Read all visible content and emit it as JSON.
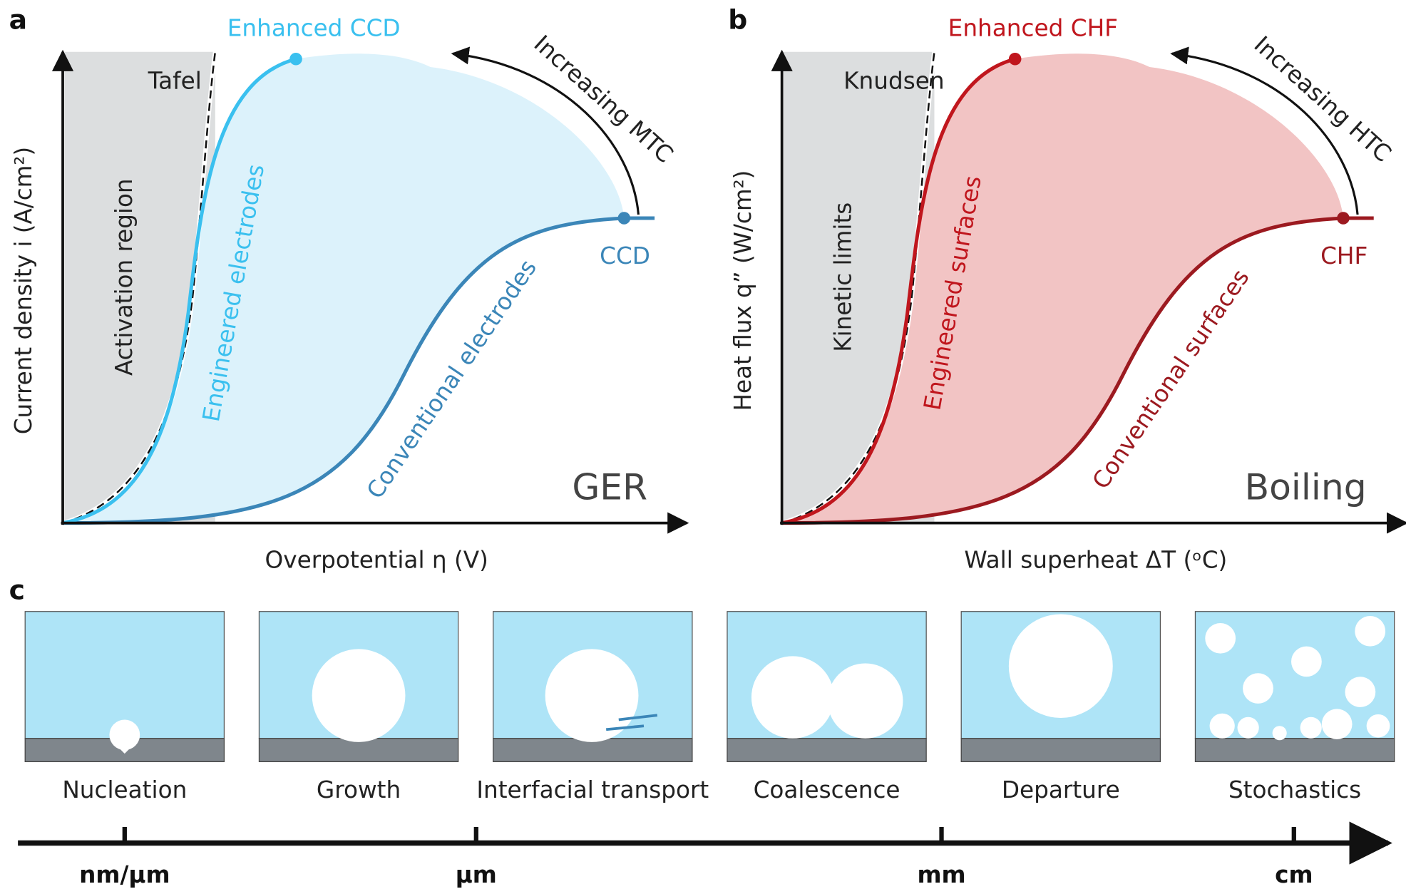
{
  "panels": [
    {
      "label": "a",
      "x_axis": "Overpotential η (V)",
      "y_axis": "Current density i (A/cm²)",
      "region": "Activation region",
      "limit": "Tafel",
      "enhanced": "Enhanced CCD",
      "engineered": "Engineered electrodes",
      "conventional": "Conventional electrodes",
      "critical": "CCD",
      "trend": "Increasing MTC",
      "process": "GER"
    },
    {
      "label": "b",
      "x_axis": "Wall superheat ΔT (ᵒC)",
      "y_axis": "Heat flux q” (W/cm²)",
      "region": "Kinetic limits",
      "limit": "Knudsen",
      "enhanced": "Enhanced CHF",
      "engineered": "Engineered surfaces",
      "conventional": "Conventional surfaces",
      "critical": "CHF",
      "trend": "Increasing HTC",
      "process": "Boiling"
    }
  ],
  "panel_c": {
    "label": "c",
    "stages": [
      "Nucleation",
      "Growth",
      "Interfacial transport",
      "Coalescence",
      "Departure",
      "Stochastics"
    ],
    "scales": [
      "nm/μm",
      "μm",
      "mm",
      "cm"
    ]
  }
}
